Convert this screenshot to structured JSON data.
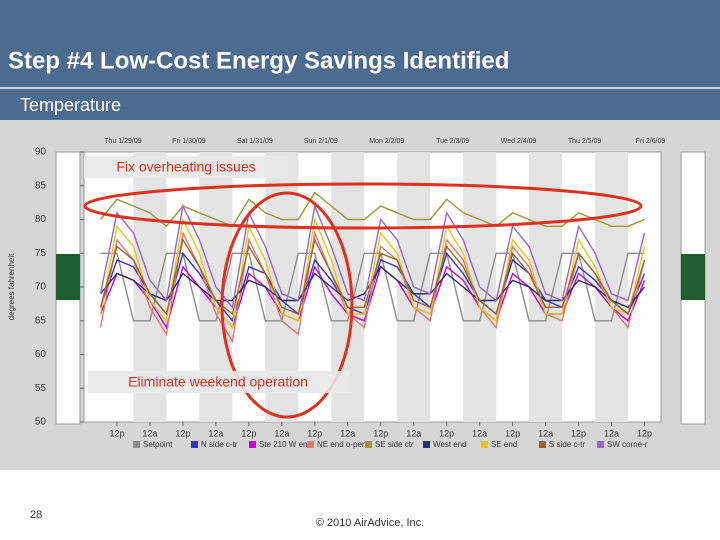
{
  "header": {
    "title": "Step #4  Low-Cost Energy Savings Identified",
    "subtitle": "Temperature"
  },
  "chart_data": {
    "type": "line",
    "ylabel": "degrees fahrenheit",
    "date_labels": [
      "Thu 1/29/09",
      "Fri 1/30/09",
      "Sat 1/31/09",
      "Sun 2/1/09",
      "Mon 2/2/09",
      "Tue 2/3/09",
      "Wed 2/4/09",
      "Thu 2/5/09",
      "Fri 2/6/09"
    ],
    "annotations": [
      "Fix overheating issues",
      "Eliminate weekend operation"
    ],
    "x": [
      -6,
      0,
      6,
      12,
      18,
      24,
      30,
      36,
      42,
      48,
      54,
      60,
      66,
      72,
      78,
      84,
      90,
      96,
      102,
      108,
      114,
      120,
      126,
      132,
      138,
      144,
      150,
      156,
      162,
      168,
      174,
      180,
      186,
      192
    ],
    "xlim": [
      -12,
      198
    ],
    "xticks": [
      {
        "value": 0,
        "label": "12p"
      },
      {
        "value": 12,
        "label": "12a"
      },
      {
        "value": 24,
        "label": "12p"
      },
      {
        "value": 36,
        "label": "12a"
      },
      {
        "value": 48,
        "label": "12p"
      },
      {
        "value": 60,
        "label": "12a"
      },
      {
        "value": 72,
        "label": "12p"
      },
      {
        "value": 84,
        "label": "12a"
      },
      {
        "value": 96,
        "label": "12p"
      },
      {
        "value": 108,
        "label": "12a"
      },
      {
        "value": 120,
        "label": "12p"
      },
      {
        "value": 132,
        "label": "12a"
      },
      {
        "value": 144,
        "label": "12p"
      },
      {
        "value": 156,
        "label": "12a"
      },
      {
        "value": 168,
        "label": "12p"
      },
      {
        "value": 180,
        "label": "12a"
      },
      {
        "value": 192,
        "label": "12p"
      }
    ],
    "ylim": [
      50,
      90
    ],
    "yticks": [
      50,
      55,
      60,
      65,
      70,
      75,
      80,
      85,
      90
    ],
    "series": [
      {
        "name": "Setpoint",
        "color": "#8c8c8c",
        "values": [
          75,
          75,
          65,
          65,
          75,
          75,
          65,
          65,
          75,
          75,
          65,
          65,
          75,
          75,
          65,
          65,
          75,
          75,
          65,
          65,
          75,
          75,
          65,
          65,
          75,
          75,
          65,
          65,
          75,
          75,
          65,
          65,
          75,
          75
        ]
      },
      {
        "name": "N side c-tr",
        "color": "#3333cc",
        "values": [
          67,
          74,
          73,
          69,
          66,
          75,
          72,
          68,
          65,
          73,
          72,
          68,
          66,
          74,
          71,
          67,
          66,
          74,
          73,
          69,
          67,
          75,
          72,
          68,
          66,
          74,
          72,
          68,
          67,
          73,
          71,
          68,
          66,
          72
        ]
      },
      {
        "name": "Ste 210 W end",
        "color": "#cc00cc",
        "values": [
          66,
          72,
          71,
          68,
          64,
          73,
          70,
          67,
          64,
          72,
          70,
          66,
          65,
          73,
          69,
          66,
          65,
          73,
          71,
          67,
          66,
          73,
          71,
          67,
          65,
          72,
          70,
          66,
          66,
          72,
          70,
          67,
          65,
          71
        ]
      },
      {
        "name": "NE end o-pen",
        "color": "#e07878",
        "values": [
          64,
          77,
          74,
          67,
          63,
          78,
          73,
          66,
          62,
          77,
          72,
          65,
          63,
          78,
          72,
          66,
          64,
          76,
          74,
          67,
          65,
          77,
          74,
          67,
          64,
          76,
          73,
          66,
          65,
          75,
          72,
          67,
          64,
          74
        ]
      },
      {
        "name": "SE side ctr",
        "color": "#99993a",
        "values": [
          80,
          83,
          82,
          81,
          79,
          82,
          81,
          80,
          79,
          83,
          81,
          80,
          80,
          84,
          82,
          80,
          80,
          82,
          81,
          80,
          80,
          83,
          81,
          80,
          79,
          81,
          80,
          79,
          79,
          81,
          80,
          79,
          79,
          80
        ]
      },
      {
        "name": "West end",
        "color": "#2e2e66",
        "values": [
          69,
          72,
          71,
          69,
          68,
          72,
          70,
          68,
          68,
          71,
          70,
          68,
          68,
          72,
          70,
          68,
          69,
          73,
          71,
          69,
          69,
          72,
          70,
          68,
          68,
          71,
          70,
          68,
          68,
          71,
          70,
          68,
          67,
          70
        ]
      },
      {
        "name": "SE end",
        "color": "#e6c619",
        "values": [
          66,
          79,
          76,
          68,
          65,
          80,
          75,
          67,
          64,
          79,
          74,
          66,
          65,
          80,
          74,
          66,
          66,
          78,
          75,
          67,
          66,
          79,
          75,
          67,
          65,
          77,
          74,
          66,
          66,
          77,
          73,
          67,
          66,
          76
        ]
      },
      {
        "name": "S side c-tr",
        "color": "#996633",
        "values": [
          67,
          76,
          74,
          69,
          66,
          77,
          73,
          68,
          66,
          76,
          72,
          67,
          66,
          77,
          72,
          67,
          67,
          75,
          74,
          68,
          67,
          76,
          73,
          68,
          66,
          75,
          72,
          67,
          67,
          75,
          72,
          68,
          66,
          74
        ]
      },
      {
        "name": "SW corne-r",
        "color": "#9966cc",
        "values": [
          69,
          81,
          78,
          71,
          68,
          82,
          77,
          70,
          67,
          81,
          76,
          69,
          68,
          82,
          76,
          69,
          68,
          80,
          77,
          70,
          69,
          81,
          77,
          70,
          68,
          79,
          76,
          69,
          68,
          79,
          75,
          69,
          68,
          78
        ]
      }
    ]
  },
  "footer": {
    "page_number": 28,
    "copyright": "© 2010 AirAdvice, Inc."
  }
}
